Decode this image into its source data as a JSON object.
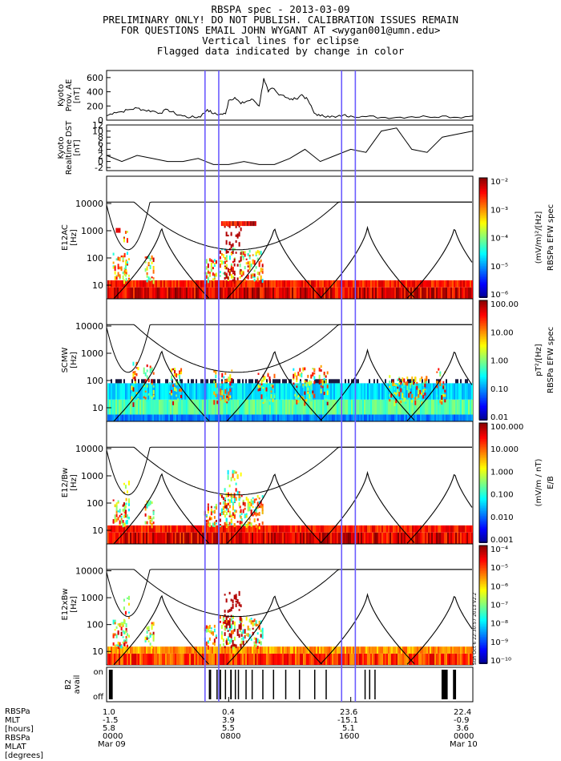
{
  "header": {
    "title": "RBSPA spec - 2013-03-09",
    "line2": "PRELIMINARY ONLY! DO NOT PUBLISH. CALIBRATION ISSUES REMAIN",
    "line3": "FOR QUESTIONS EMAIL JOHN WYGANT AT <wygan001@umn.edu>",
    "line4": "Vertical lines for eclipse",
    "line5": "Flagged data indicated by change in color"
  },
  "colors": {
    "eclipse_line": "#6b5cff",
    "trace": "#000000"
  },
  "chart_data": [
    {
      "type": "line",
      "name": "ae",
      "ylabel": [
        "Kyoto",
        "Prov. AE",
        "[nT]"
      ],
      "ylim": [
        0,
        700
      ],
      "yticks": [
        "600",
        "400",
        "200",
        "0"
      ],
      "ytick_values": [
        600,
        400,
        200,
        0
      ],
      "x_hours": [
        0,
        0.5,
        1,
        1.5,
        2,
        2.5,
        3,
        3.5,
        4,
        4.5,
        5,
        5.5,
        6,
        6.2,
        6.6,
        7,
        7.4,
        7.8,
        8,
        8.4,
        8.8,
        9.2,
        9.6,
        10,
        10.3,
        10.6,
        10.9,
        11.2,
        11.6,
        12,
        12.4,
        12.8,
        13.2,
        13.6,
        14,
        14.5,
        15,
        15.5,
        16,
        17,
        18,
        19,
        20,
        21,
        22,
        23,
        24
      ],
      "values": [
        60,
        110,
        120,
        150,
        170,
        140,
        130,
        100,
        150,
        90,
        60,
        40,
        45,
        60,
        150,
        90,
        80,
        90,
        280,
        320,
        230,
        270,
        290,
        200,
        590,
        400,
        450,
        380,
        350,
        290,
        300,
        360,
        280,
        100,
        60,
        60,
        40,
        70,
        60,
        50,
        40,
        40,
        50,
        50,
        60,
        40,
        60
      ]
    },
    {
      "type": "line",
      "name": "dst",
      "ylabel": [
        "Kyoto",
        "Realtime DST",
        "[nT]"
      ],
      "ylim": [
        -3,
        12
      ],
      "yticks": [
        "12",
        "10",
        "8",
        "6",
        "4",
        "2",
        "0",
        "-2"
      ],
      "ytick_values": [
        12,
        10,
        8,
        6,
        4,
        2,
        0,
        -2
      ],
      "x_hours": [
        0,
        1,
        2,
        3,
        4,
        5,
        6,
        7,
        8,
        9,
        10,
        11,
        12,
        13,
        14,
        15,
        16,
        17,
        18,
        19,
        20,
        21,
        22,
        23,
        24
      ],
      "values": [
        2,
        0,
        2,
        1,
        0,
        0,
        1,
        -1,
        -1,
        0,
        -1,
        -1,
        1,
        4,
        0,
        2,
        4,
        3,
        10,
        11,
        4,
        3,
        8,
        9,
        10
      ]
    },
    {
      "type": "heatmap",
      "name": "e12ac",
      "ylabel": [
        "E12AC",
        "[Hz]"
      ],
      "yticks": [
        "10000",
        "1000",
        "100",
        "10"
      ],
      "colorbar": {
        "ticks": [
          "10⁻²",
          "10⁻³",
          "10⁻⁴",
          "10⁻⁵",
          "10⁻⁶"
        ],
        "units": "(mV/m)²/[Hz]",
        "label": "RBSPa EFW spec"
      }
    },
    {
      "type": "heatmap",
      "name": "scmw",
      "ylabel": [
        "SCMW",
        "[Hz]"
      ],
      "yticks": [
        "10000",
        "1000",
        "100",
        "10"
      ],
      "colorbar": {
        "ticks": [
          "100.00",
          "10.00",
          "1.00",
          "0.10",
          "0.01"
        ],
        "units": "pT²/[Hz]",
        "label": "RBSPa EFW spec"
      }
    },
    {
      "type": "heatmap",
      "name": "e12bw",
      "ylabel": [
        "E12/Bw",
        "[Hz]"
      ],
      "yticks": [
        "10000",
        "1000",
        "100",
        "10"
      ],
      "colorbar": {
        "ticks": [
          "100.000",
          "10.000",
          "1.000",
          "0.100",
          "0.010",
          "0.001"
        ],
        "units": "(mV/m / nT)",
        "label": "E/B"
      }
    },
    {
      "type": "heatmap",
      "name": "e12xbw",
      "ylabel": [
        "E12xBw",
        "[Hz]"
      ],
      "yticks": [
        "10000",
        "1000",
        "100",
        "10"
      ],
      "colorbar": {
        "ticks": [
          "10⁻⁴",
          "10⁻⁵",
          "10⁻⁶",
          "10⁻⁷",
          "10⁻⁸",
          "10⁻⁹",
          "10⁻¹⁰"
        ],
        "units": "",
        "label": ""
      },
      "stamp": "Sun Oct  6 22:30:57 2013 v2.2"
    },
    {
      "type": "bar",
      "name": "b2avail",
      "ylabel": [
        "B2",
        "avail"
      ],
      "yticks": [
        "on",
        "off"
      ],
      "on_intervals_hours": [
        [
          0.15,
          0.4
        ],
        [
          6.7,
          6.85
        ],
        [
          7.2,
          7.25
        ],
        [
          7.4,
          7.5
        ],
        [
          7.75,
          7.8
        ],
        [
          8.1,
          8.2
        ],
        [
          8.4,
          8.45
        ],
        [
          8.6,
          8.65
        ],
        [
          9.1,
          9.15
        ],
        [
          9.5,
          9.55
        ],
        [
          10.2,
          10.25
        ],
        [
          10.9,
          10.95
        ],
        [
          11.7,
          11.75
        ],
        [
          12.6,
          12.65
        ],
        [
          13.6,
          13.65
        ],
        [
          14.35,
          14.4
        ],
        [
          16.9,
          16.95
        ],
        [
          17.2,
          17.25
        ],
        [
          17.55,
          17.6
        ],
        [
          21.95,
          22.35
        ],
        [
          22.7,
          22.9
        ]
      ]
    }
  ],
  "eclipse_hours": [
    6.45,
    7.35,
    15.4,
    16.3
  ],
  "xaxis": {
    "labels_left": [
      "RBSPa",
      "MLT",
      "[hours]",
      "RBSPa",
      "MLAT",
      "[degrees]"
    ],
    "ticks": [
      {
        "mlt": "1.0",
        "mlat": "-1.5",
        "second": "5.8",
        "time": "0000",
        "date": "Mar 09"
      },
      {
        "mlt": "0.4",
        "mlat": "3.9",
        "second": "5.5",
        "time": "0800",
        "date": ""
      },
      {
        "mlt": "23.6",
        "mlat": "-15.1",
        "second": "5.1",
        "time": "1600",
        "date": ""
      },
      {
        "mlt": "22.4",
        "mlat": "-0.9",
        "second": "3.6",
        "time": "0000",
        "date": "Mar 10"
      }
    ]
  }
}
